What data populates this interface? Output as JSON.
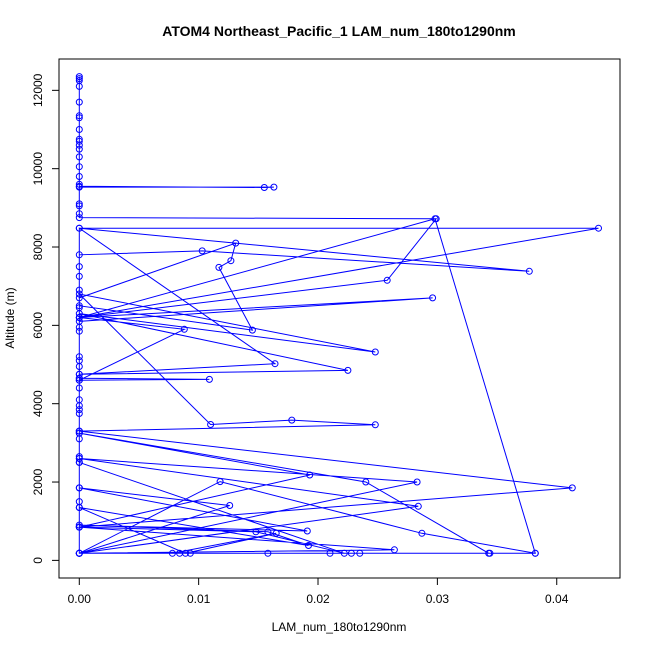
{
  "chart_data": {
    "type": "line",
    "title": "ATOM4 Northeast_Pacific_1 LAM_num_180to1290nm",
    "xlabel": "LAM_num_180to1290nm",
    "ylabel": "Altitude (m)",
    "xlim": [
      -0.0017,
      0.0453
    ],
    "ylim": [
      -450,
      12800
    ],
    "x_ticks": [
      0.0,
      0.01,
      0.02,
      0.03,
      0.04
    ],
    "x_tick_labels": [
      "0.00",
      "0.01",
      "0.02",
      "0.03",
      "0.04"
    ],
    "y_ticks": [
      0,
      2000,
      4000,
      6000,
      8000,
      10000,
      12000
    ],
    "y_tick_labels": [
      "0",
      "2000",
      "4000",
      "6000",
      "8000",
      "10000",
      "12000"
    ],
    "grid": false,
    "marker": "open-circle",
    "colors": {
      "series": "#0000ff",
      "axes": "#000000",
      "background": "#ffffff"
    },
    "series": [
      {
        "name": "",
        "points": [
          [
            0.0,
            12350
          ],
          [
            0.0,
            12300
          ],
          [
            0.0,
            12250
          ],
          [
            0.0,
            12100
          ],
          [
            0.0,
            11700
          ],
          [
            0.0,
            11350
          ],
          [
            0.0,
            11300
          ],
          [
            0.0,
            11000
          ],
          [
            0.0,
            10750
          ],
          [
            0.0,
            10700
          ],
          [
            0.0,
            10600
          ],
          [
            0.0,
            10500
          ],
          [
            0.0,
            10300
          ],
          [
            0.0,
            10050
          ],
          [
            0.0,
            9800
          ],
          [
            0.0,
            9600
          ],
          [
            0.0,
            9550
          ],
          [
            0.0155,
            9520
          ],
          [
            0.0163,
            9530
          ],
          [
            0.0,
            9530
          ],
          [
            0.0,
            9100
          ],
          [
            0.0,
            9050
          ],
          [
            0.0,
            8850
          ],
          [
            0.0,
            8750
          ],
          [
            0.0299,
            8720
          ],
          [
            0.0258,
            7150
          ],
          [
            0.0,
            6200
          ],
          [
            0.0435,
            8480
          ],
          [
            0.0,
            8480
          ],
          [
            0.0377,
            7380
          ],
          [
            0.0103,
            7900
          ],
          [
            0.0,
            7800
          ],
          [
            0.0,
            7500
          ],
          [
            0.0,
            7250
          ],
          [
            0.0,
            6900
          ],
          [
            0.0,
            6700
          ],
          [
            0.0131,
            8100
          ],
          [
            0.0127,
            7650
          ],
          [
            0.0117,
            7480
          ],
          [
            0.0145,
            5880
          ],
          [
            0.0,
            6500
          ],
          [
            0.0,
            6450
          ],
          [
            0.0,
            6200
          ],
          [
            0.0296,
            6700
          ],
          [
            0.0,
            6100
          ],
          [
            0.0,
            5950
          ],
          [
            0.0,
            5850
          ],
          [
            0.0,
            5200
          ],
          [
            0.0,
            5100
          ],
          [
            0.0,
            4950
          ],
          [
            0.0,
            4750
          ],
          [
            0.0,
            4650
          ],
          [
            0.0,
            4600
          ],
          [
            0.0,
            4400
          ],
          [
            0.0,
            4100
          ],
          [
            0.0,
            3950
          ],
          [
            0.0,
            3850
          ],
          [
            0.0,
            3750
          ],
          [
            0.0,
            3300
          ],
          [
            0.0,
            3250
          ],
          [
            0.0,
            3100
          ],
          [
            0.0,
            2650
          ],
          [
            0.0,
            2600
          ],
          [
            0.0,
            2500
          ],
          [
            0.0,
            1850
          ],
          [
            0.0,
            1500
          ],
          [
            0.0,
            1350
          ],
          [
            0.0,
            850
          ],
          [
            0.0,
            180
          ],
          [
            0.0084,
            180
          ],
          [
            0.0093,
            180
          ],
          [
            0.0158,
            180
          ],
          [
            0.021,
            180
          ],
          [
            0.0228,
            180
          ],
          [
            0.0235,
            180
          ],
          [
            0.0344,
            180
          ],
          [
            0.0382,
            180
          ],
          [
            0.0298,
            8720
          ],
          [
            0.0,
            6200
          ],
          [
            0.0088,
            5900
          ],
          [
            0.0,
            4600
          ],
          [
            0.0109,
            4620
          ],
          [
            0.0,
            4650
          ],
          [
            0.0,
            8480
          ],
          [
            0.0164,
            5020
          ],
          [
            0.0,
            4750
          ],
          [
            0.0225,
            4850
          ],
          [
            0.0,
            6300
          ],
          [
            0.0248,
            5320
          ],
          [
            0.0,
            6800
          ],
          [
            0.011,
            3470
          ],
          [
            0.0178,
            3580
          ],
          [
            0.0248,
            3460
          ],
          [
            0.0,
            3300
          ],
          [
            0.0413,
            1850
          ],
          [
            0.0,
            850
          ],
          [
            0.0193,
            2180
          ],
          [
            0.0,
            3250
          ],
          [
            0.024,
            2000
          ],
          [
            0.0343,
            180
          ],
          [
            0.0,
            180
          ],
          [
            0.0283,
            2000
          ],
          [
            0.0,
            2600
          ],
          [
            0.0284,
            1380
          ],
          [
            0.0,
            180
          ],
          [
            0.0118,
            2010
          ],
          [
            0.0287,
            690
          ],
          [
            0.0382,
            180
          ],
          [
            0.0,
            180
          ],
          [
            0.0126,
            1400
          ],
          [
            0.0,
            1850
          ],
          [
            0.0191,
            750
          ],
          [
            0.0,
            900
          ],
          [
            0.0158,
            730
          ],
          [
            0.0192,
            380
          ],
          [
            0.0,
            1350
          ],
          [
            0.0089,
            180
          ],
          [
            0.0165,
            690
          ],
          [
            0.0078,
            180
          ],
          [
            0.0,
            180
          ],
          [
            0.0264,
            270
          ],
          [
            0.0,
            850
          ],
          [
            0.0148,
            730
          ],
          [
            0.0222,
            180
          ],
          [
            0.0,
            2500
          ],
          [
            0.0,
            180
          ]
        ]
      }
    ]
  }
}
